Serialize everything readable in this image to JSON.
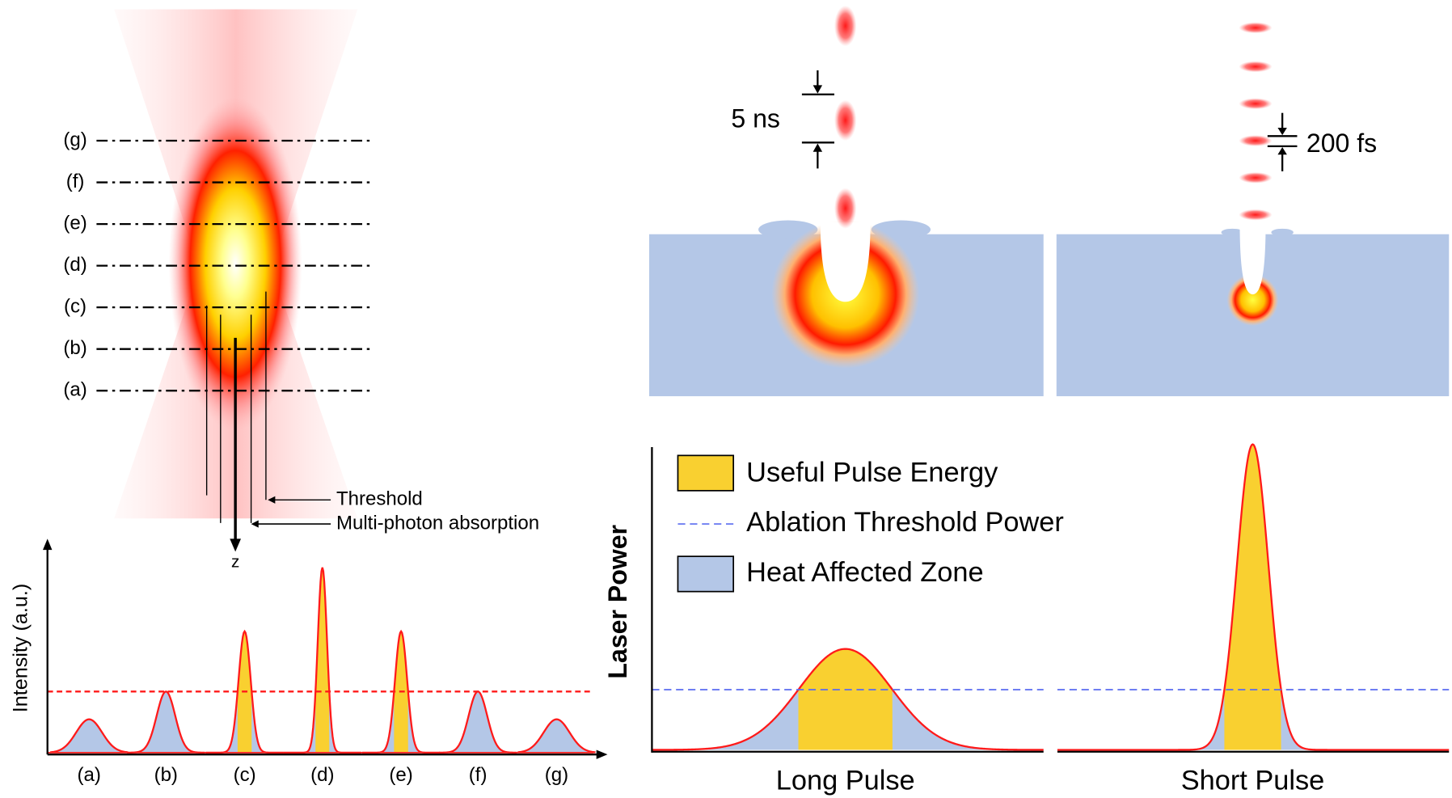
{
  "focus_panel": {
    "planes": [
      "(g)",
      "(f)",
      "(e)",
      "(d)",
      "(c)",
      "(b)",
      "(a)"
    ],
    "threshold_label": "Threshold",
    "absorption_label": "Multi-photon absorption",
    "axis_label": "z"
  },
  "intensity_panel": {
    "y_label": "Intensity (a.u.)",
    "categories": [
      "(a)",
      "(b)",
      "(c)",
      "(d)",
      "(e)",
      "(f)",
      "(g)"
    ]
  },
  "pulse_panel": {
    "long_duration": "5 ns",
    "short_duration": "200 fs"
  },
  "power_panel": {
    "y_label": "Laser Power",
    "legend": [
      "Useful Pulse Energy",
      "Ablation Threshold Power",
      "Heat Affected Zone"
    ],
    "long_label": "Long Pulse",
    "short_label": "Short Pulse"
  }
}
